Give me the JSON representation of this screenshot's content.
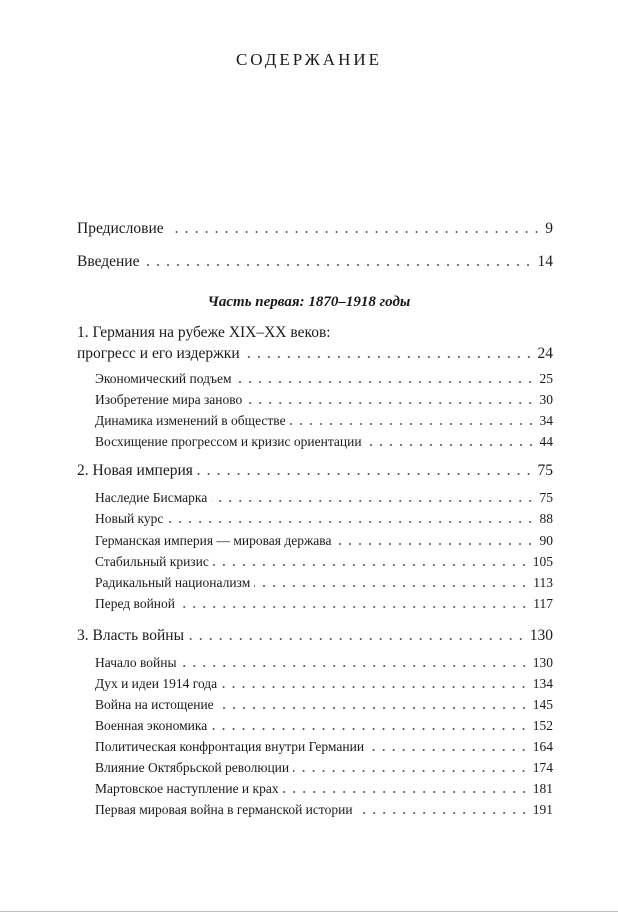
{
  "title": "СОДЕРЖАНИЕ",
  "front": [
    {
      "label": "Предисловие",
      "page": "9"
    },
    {
      "label": "Введение",
      "page": "14"
    }
  ],
  "part1": "Часть первая: 1870–1918 годы",
  "chapters": [
    {
      "label_line1": "1. Германия на рубеже XIX–XX веков:",
      "label": "прогресс и его издержки",
      "page": "24",
      "sections": [
        {
          "label": "Экономический подъем",
          "page": "25"
        },
        {
          "label": "Изобретение мира заново",
          "page": "30"
        },
        {
          "label": "Динамика изменений в обществе",
          "page": "34"
        },
        {
          "label": "Восхищение прогрессом и кризис ориентации",
          "page": "44"
        }
      ]
    },
    {
      "label": "2. Новая империя",
      "page": "75",
      "sections": [
        {
          "label": "Наследие Бисмарка",
          "page": "75"
        },
        {
          "label": "Новый курс",
          "page": "88"
        },
        {
          "label": "Германская империя — мировая держава",
          "page": "90"
        },
        {
          "label": "Стабильный кризис",
          "page": "105"
        },
        {
          "label": "Радикальный национализм",
          "page": "113"
        },
        {
          "label": "Перед войной",
          "page": "117"
        }
      ]
    },
    {
      "label": "3. Власть войны",
      "page": "130",
      "sections": [
        {
          "label": "Начало войны",
          "page": "130"
        },
        {
          "label": "Дух и идеи 1914 года",
          "page": "134"
        },
        {
          "label": "Война на истощение",
          "page": "145"
        },
        {
          "label": "Военная экономика",
          "page": "152"
        },
        {
          "label": "Политическая конфронтация внутри Германии",
          "page": "164"
        },
        {
          "label": "Влияние Октябрьской революции",
          "page": "174"
        },
        {
          "label": "Мартовское наступление и крах",
          "page": "181"
        },
        {
          "label": "Первая мировая война в германской истории",
          "page": "191"
        }
      ]
    }
  ]
}
